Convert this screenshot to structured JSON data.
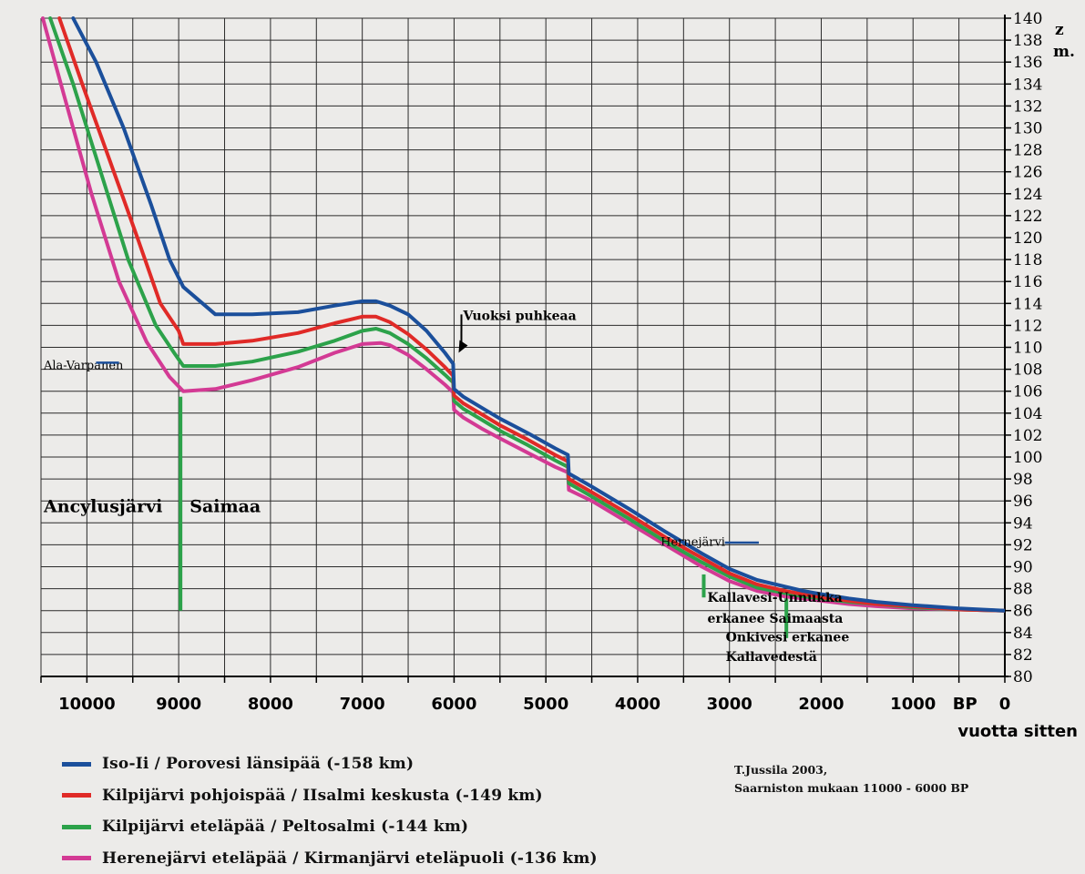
{
  "chart_data": {
    "type": "line",
    "x_axis": {
      "reversed": true,
      "range": [
        10500,
        0
      ],
      "ticks": [
        10000,
        9000,
        8000,
        7000,
        6000,
        5000,
        4000,
        3000,
        2000,
        1000,
        0
      ],
      "tick_labels": [
        "10000",
        "9000",
        "8000",
        "7000",
        "6000",
        "5000",
        "4000",
        "3000",
        "2000",
        "1000",
        "0"
      ],
      "extra_label": "BP",
      "xlabel": "vuotta sitten"
    },
    "y_axis": {
      "range": [
        80,
        140
      ],
      "ticks": [
        80,
        82,
        84,
        86,
        88,
        90,
        92,
        94,
        96,
        98,
        100,
        102,
        104,
        106,
        108,
        110,
        112,
        114,
        116,
        118,
        120,
        122,
        124,
        126,
        128,
        130,
        132,
        134,
        136,
        138,
        140
      ],
      "unit_label": [
        "z",
        "m."
      ],
      "position": "right"
    },
    "grid": true,
    "series": [
      {
        "name": "Iso-Ii / Porovesi länsipää (-158 km)",
        "color": "#1b4f9b",
        "x": [
          10150,
          9900,
          9600,
          9300,
          9100,
          8950,
          8600,
          8200,
          7700,
          7300,
          7000,
          6850,
          6700,
          6500,
          6300,
          6100,
          6010,
          6000,
          5900,
          5700,
          5500,
          5200,
          4900,
          4760,
          4750,
          4500,
          4100,
          3700,
          3300,
          3000,
          2700,
          2400,
          2200,
          2000,
          1700,
          1400,
          1000,
          500,
          0
        ],
        "y": [
          140,
          136,
          130,
          123,
          118,
          115.5,
          113,
          113,
          113.2,
          113.8,
          114.2,
          114.2,
          113.8,
          113,
          111.5,
          109.5,
          108.5,
          106.2,
          105.5,
          104.5,
          103.5,
          102.2,
          100.8,
          100.2,
          98.5,
          97.3,
          95.3,
          93.2,
          91.2,
          89.8,
          88.8,
          88.2,
          87.8,
          87.5,
          87.1,
          86.8,
          86.5,
          86.2,
          86
        ]
      },
      {
        "name": "Kilpijärvi pohjoispää / IIsalmi keskusta (-149 km)",
        "color": "#e02a27",
        "x": [
          10300,
          10050,
          9750,
          9450,
          9200,
          9000,
          8950,
          8600,
          8200,
          7700,
          7300,
          7000,
          6850,
          6700,
          6500,
          6300,
          6100,
          6010,
          6000,
          5900,
          5700,
          5500,
          5200,
          4900,
          4760,
          4750,
          4500,
          4100,
          3700,
          3300,
          3000,
          2700,
          2400,
          2200,
          2000,
          1700,
          1400,
          1000,
          500,
          0
        ],
        "y": [
          140,
          134,
          127,
          120,
          114,
          111.5,
          110.3,
          110.3,
          110.6,
          111.3,
          112.2,
          112.8,
          112.8,
          112.3,
          111.2,
          109.8,
          108.2,
          107.4,
          105.6,
          104.9,
          103.9,
          102.9,
          101.6,
          100.2,
          99.6,
          98,
          96.8,
          94.8,
          92.7,
          90.8,
          89.4,
          88.4,
          87.8,
          87.5,
          87.2,
          86.9,
          86.6,
          86.4,
          86.1,
          86
        ]
      },
      {
        "name": "Kilpijärvi eteläpää / Peltosalmi (-144 km)",
        "color": "#2ca24a",
        "x": [
          10400,
          10150,
          9850,
          9550,
          9250,
          9050,
          8950,
          8600,
          8200,
          7700,
          7300,
          7000,
          6850,
          6700,
          6500,
          6300,
          6100,
          6010,
          6000,
          5900,
          5700,
          5500,
          5200,
          4900,
          4760,
          4750,
          4500,
          4100,
          3700,
          3300,
          3000,
          2700,
          2400,
          2200,
          2000,
          1700,
          1400,
          1000,
          500,
          0
        ],
        "y": [
          140,
          134,
          126,
          118,
          112,
          109.5,
          108.3,
          108.3,
          108.7,
          109.6,
          110.6,
          111.5,
          111.7,
          111.3,
          110.3,
          109,
          107.5,
          106.8,
          105.1,
          104.4,
          103.4,
          102.4,
          101.1,
          99.7,
          99.1,
          97.6,
          96.4,
          94.4,
          92.3,
          90.4,
          89.1,
          88.1,
          87.6,
          87.3,
          87.1,
          86.8,
          86.6,
          86.3,
          86.1,
          86
        ]
      },
      {
        "name": "Herenejärvi eteläpää / Kirmanjärvi eteläpuoli (-136 km)",
        "color": "#d33a94",
        "x": [
          10480,
          10250,
          9950,
          9650,
          9350,
          9100,
          8950,
          8600,
          8200,
          7700,
          7300,
          7000,
          6800,
          6700,
          6500,
          6300,
          6100,
          6010,
          6000,
          5900,
          5700,
          5500,
          5200,
          4900,
          4760,
          4750,
          4500,
          4100,
          3700,
          3300,
          3000,
          2700,
          2400,
          2200,
          2000,
          1700,
          1400,
          1000,
          500,
          0
        ],
        "y": [
          140,
          133,
          124,
          116,
          110.5,
          107.3,
          106,
          106.2,
          107,
          108.2,
          109.5,
          110.3,
          110.4,
          110.2,
          109.3,
          108,
          106.6,
          105.9,
          104.3,
          103.6,
          102.6,
          101.7,
          100.4,
          99.1,
          98.6,
          97,
          96,
          94,
          92,
          90,
          88.7,
          87.8,
          87.3,
          87.1,
          86.9,
          86.6,
          86.4,
          86.2,
          86.1,
          86
        ]
      }
    ],
    "annotations": [
      {
        "text": "Vuoksi puhkeaa",
        "x": 5900,
        "y": 112.5,
        "arrow_to": [
          5950,
          109.5
        ]
      },
      {
        "text": "Ala-Varpanen",
        "x": 10470,
        "y": 108,
        "marker_color": "#1b4f9b"
      },
      {
        "text": "Hernejärvi",
        "x": 3750,
        "y": 91.9,
        "marker_color": "#1b4f9b"
      },
      {
        "text": "Ancylusjärvi",
        "x": 10470,
        "y": 95
      },
      {
        "text": "Saimaa",
        "x": 8880,
        "y": 95
      },
      {
        "text": "Kallavesi-Unnukka",
        "x": 3240,
        "y": 86.8
      },
      {
        "text": "erkanee Saimaasta",
        "x": 3240,
        "y": 84.9
      },
      {
        "text": "Onkivesi erkanee",
        "x": 3040,
        "y": 83.2
      },
      {
        "text": "Kallavedestä",
        "x": 3040,
        "y": 81.4
      }
    ],
    "vertical_markers": [
      {
        "x": 8980,
        "y_from": 105.5,
        "y_to": 86,
        "color": "#2ca24a"
      },
      {
        "x": 3280,
        "y_from": 89.3,
        "y_to": 87.2,
        "color": "#2ca24a"
      },
      {
        "x": 2380,
        "y_from": 87.2,
        "y_to": 83.5,
        "color": "#2ca24a"
      }
    ]
  },
  "credit": {
    "line1": "T.Jussila 2003,",
    "line2": "Saarniston mukaan 11000 - 6000 BP"
  }
}
